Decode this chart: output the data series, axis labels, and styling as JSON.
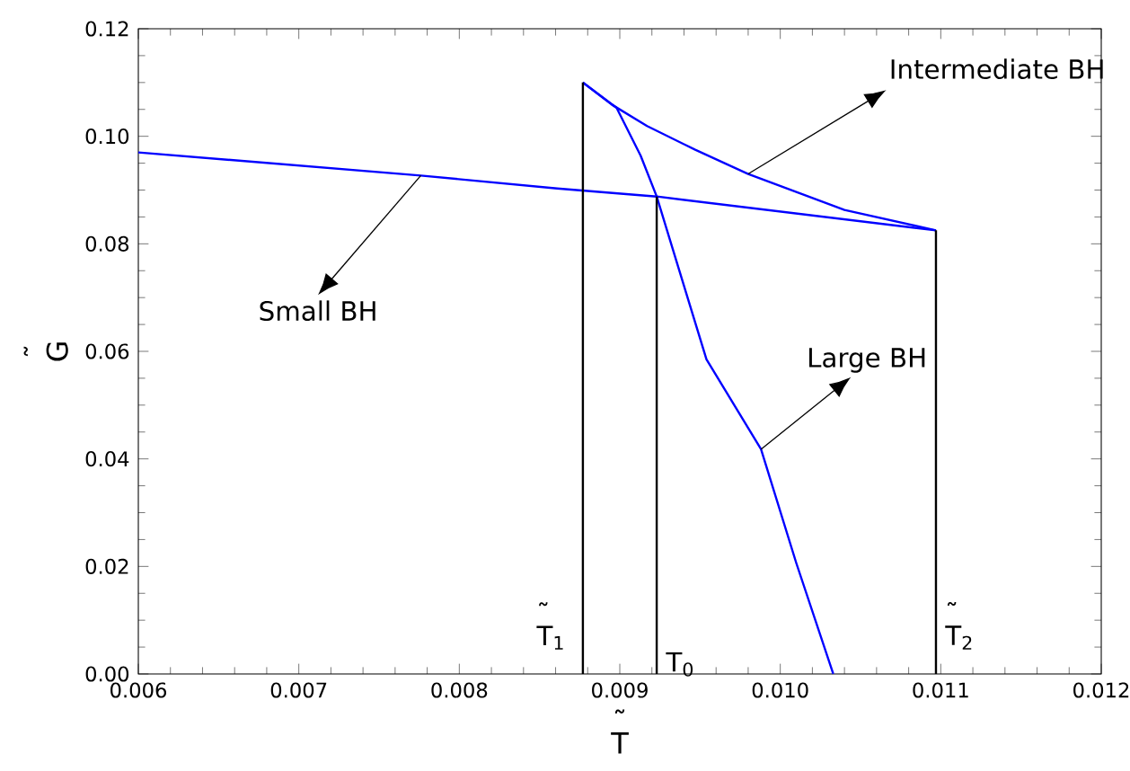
{
  "chart_data": {
    "type": "line",
    "xlabel": "˜ T",
    "ylabel": "˜ G",
    "xlim": [
      0.006,
      0.012
    ],
    "ylim": [
      0,
      0.12
    ],
    "xticks": [
      0.006,
      0.007,
      0.008,
      0.009,
      {
        "value": 0.01,
        "label": "0.010"
      },
      0.011,
      0.012
    ],
    "yticks": [
      {
        "value": 0,
        "label": "0.00"
      },
      {
        "value": 0.02,
        "label": "0.02"
      },
      {
        "value": 0.04,
        "label": "0.04"
      },
      {
        "value": 0.06,
        "label": "0.06"
      },
      {
        "value": 0.08,
        "label": "0.08"
      },
      {
        "value": 0.1,
        "label": "0.10"
      },
      {
        "value": 0.12,
        "label": "0.12"
      }
    ],
    "marker": "none",
    "line_style": "solid",
    "series": [
      {
        "color": "#0000ff",
        "x": [
          0.006,
          0.00776,
          0.00861,
          0.00923,
          0.01097
        ],
        "values": [
          0.097,
          0.0927,
          0.0903,
          0.0888,
          0.0825
        ]
      },
      {
        "color": "#0000ff",
        "x": [
          0.00877,
          0.00895,
          0.00917,
          0.00947,
          0.0098,
          0.0104,
          0.01097
        ],
        "values": [
          0.11,
          0.1059,
          0.1019,
          0.0975,
          0.093,
          0.0863,
          0.0825
        ]
      },
      {
        "color": "#0000ff",
        "x": [
          0.00877,
          0.00898,
          0.00913,
          0.00923,
          0.00954,
          0.00988,
          0.0101,
          0.01033
        ],
        "values": [
          0.11,
          0.1053,
          0.0964,
          0.0888,
          0.0585,
          0.0418,
          0.0206,
          0.0
        ]
      },
      {
        "color": "#000000",
        "x": [
          0.00877,
          0.00877
        ],
        "values": [
          0,
          0.11
        ]
      },
      {
        "color": "#000000",
        "x": [
          0.00923,
          0.00923
        ],
        "values": [
          0,
          0.0888
        ]
      },
      {
        "color": "#000000",
        "x": [
          0.01097,
          0.01097
        ],
        "values": [
          0,
          0.0825
        ]
      }
    ],
    "annotations": [
      {
        "text": "Small BH",
        "x": 0.00776,
        "y": 0.0927
      },
      {
        "text": "Intermediate BH",
        "x": 0.0098,
        "y": 0.093
      },
      {
        "text": "Large BH",
        "x": 0.00988,
        "y": 0.0418
      },
      {
        "text": "˜ T$_{1}$",
        "x": 0.00877,
        "y": 0
      },
      {
        "text": "T$_{0}$",
        "x": 0.00923,
        "y": 0
      },
      {
        "text": "˜ T$_{2}$",
        "x": 0.01097,
        "y": 0
      }
    ]
  }
}
